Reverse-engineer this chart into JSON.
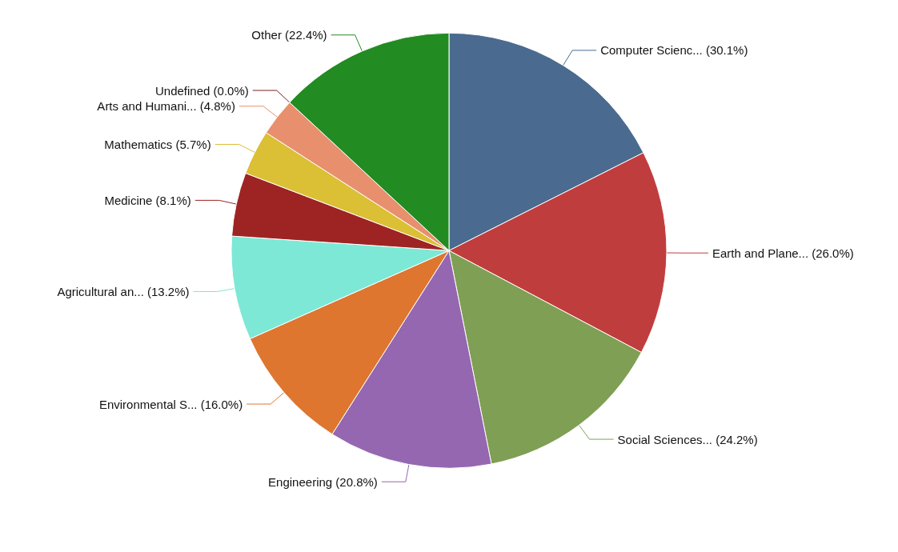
{
  "chart_data": {
    "type": "pie",
    "categories": [
      "Computer Scienc...",
      "Earth and Plane...",
      "Social Sciences...",
      "Engineering",
      "Environmental S...",
      "Agricultural an...",
      "Medicine",
      "Mathematics",
      "Arts and Humani...",
      "Undefined",
      "Other"
    ],
    "values": [
      30.1,
      26.0,
      24.2,
      20.8,
      16.0,
      13.2,
      8.1,
      5.7,
      4.8,
      0.0,
      22.4
    ],
    "value_labels": [
      "(30.1%)",
      "(26.0%)",
      "(24.2%)",
      "(20.8%)",
      "(16.0%)",
      "(13.2%)",
      "(8.1%)",
      "(5.7%)",
      "(4.8%)",
      "(0.0%)",
      "(22.4%)"
    ],
    "colors": [
      "#4a6b8f",
      "#c03d3e",
      "#7f9f54",
      "#9467b0",
      "#de7630",
      "#7de8d5",
      "#9e2424",
      "#dbbf35",
      "#e8906e",
      "#7a2020",
      "#228b22"
    ]
  }
}
